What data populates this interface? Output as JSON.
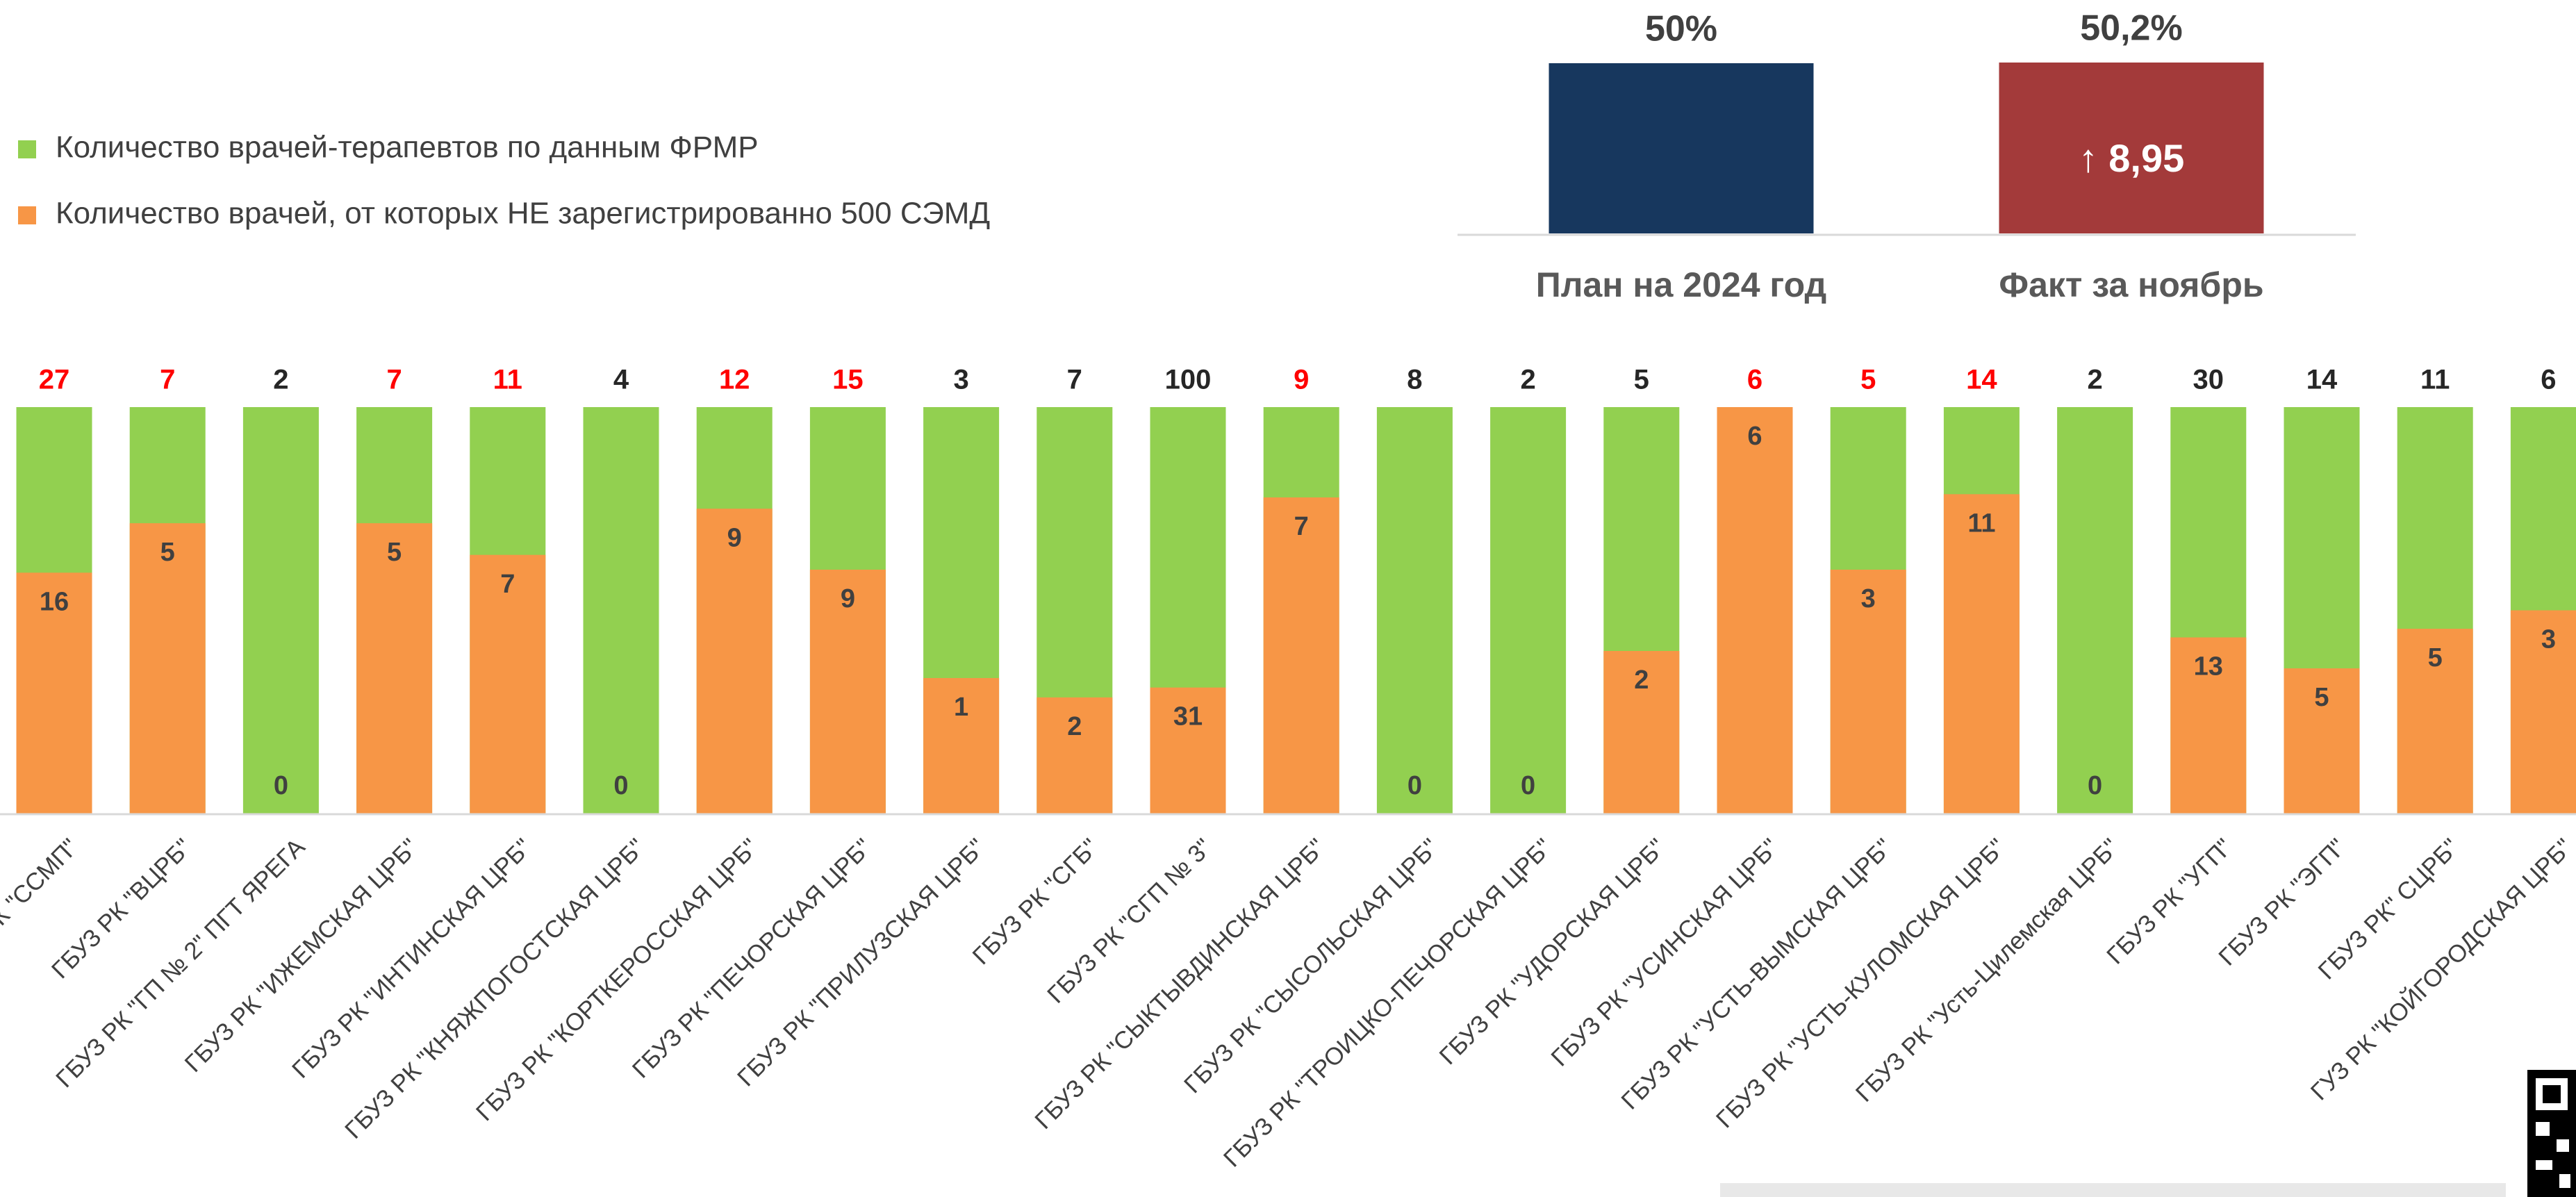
{
  "chart_data": [
    {
      "type": "stacked-share-bar",
      "categories": [
        "ГБУЗ РК \"ССМП\"",
        "ГБУЗ РК \"ВЦРБ\"",
        "ГБУЗ РК \"ГП № 2\" ПГТ ЯРЕГА",
        "ГБУЗ РК \"ИЖЕМСКАЯ ЦРБ\"",
        "ГБУЗ РК \"ИНТИНСКАЯ ЦРБ\"",
        "ГБУЗ РК \"КНЯЖПОГОСТСКАЯ ЦРБ\"",
        "ГБУЗ РК \"КОРТКЕРОССКАЯ ЦРБ\"",
        "ГБУЗ РК \"ПЕЧОРСКАЯ ЦРБ\"",
        "ГБУЗ РК \"ПРИЛУЗСКАЯ ЦРБ\"",
        "ГБУЗ РК \"СГБ\"",
        "ГБУЗ РК \"СГП № 3\"",
        "ГБУЗ РК \"СЫКТЫВДИНСКАЯ ЦРБ\"",
        "ГБУЗ РК \"СЫСОЛЬСКАЯ ЦРБ\"",
        "ГБУЗ РК \"ТРОИЦКО-ПЕЧОРСКАЯ ЦРБ\"",
        "ГБУЗ РК \"УДОРСКАЯ ЦРБ\"",
        "ГБУЗ РК \"УСИНСКАЯ ЦРБ\"",
        "ГБУЗ РК \"УСТЬ-ВЫМСКАЯ ЦРБ\"",
        "ГБУЗ РК \"УСТЬ-КУЛОМСКАЯ ЦРБ\"",
        "ГБУЗ РК \"Усть-Цилемская ЦРБ\"",
        "ГБУЗ РК \"УГП\"",
        "ГБУЗ РК \"ЭГП\"",
        "ГБУЗ РК\" СЦРБ\"",
        "ГУЗ РК \"КОЙГОРОДСКАЯ ЦРБ\""
      ],
      "series": [
        {
          "name": "Количество врачей-терапевтов по данным ФРМР",
          "color": "#92d050",
          "values": [
            27,
            7,
            2,
            7,
            11,
            4,
            12,
            15,
            3,
            7,
            100,
            9,
            8,
            2,
            5,
            6,
            5,
            14,
            2,
            30,
            14,
            11,
            6
          ]
        },
        {
          "name": "Количество врачей, от которых НЕ зарегистрированно 500 СЭМД",
          "color": "#f79646",
          "values": [
            16,
            5,
            0,
            5,
            7,
            0,
            9,
            9,
            1,
            2,
            31,
            7,
            0,
            0,
            2,
            6,
            3,
            11,
            0,
            13,
            5,
            5,
            3
          ]
        }
      ],
      "total_label_colors": [
        "#ff0000",
        "#ff0000",
        "#262626",
        "#ff0000",
        "#ff0000",
        "#262626",
        "#ff0000",
        "#ff0000",
        "#262626",
        "#262626",
        "#262626",
        "#ff0000",
        "#262626",
        "#262626",
        "#262626",
        "#ff0000",
        "#ff0000",
        "#ff0000",
        "#262626",
        "#262626",
        "#262626",
        "#262626",
        "#262626"
      ]
    },
    {
      "type": "bar",
      "categories": [
        "План на 2024 год",
        "Факт за ноябрь"
      ],
      "values": [
        50,
        50.2
      ],
      "value_labels": [
        "50%",
        "50,2%"
      ],
      "colors": [
        "#17375e",
        "#a33a3a"
      ],
      "annotation": "↑ 8,95"
    }
  ]
}
